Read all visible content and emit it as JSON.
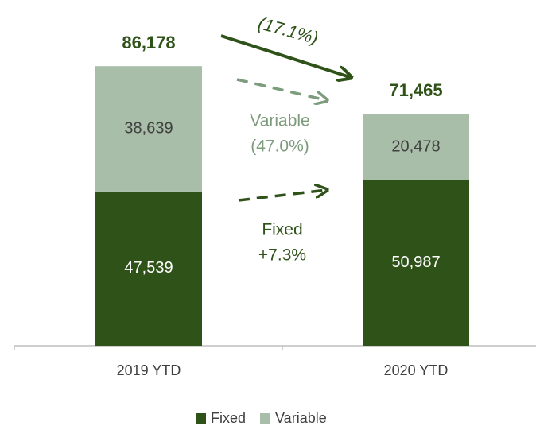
{
  "chart_data": {
    "type": "bar",
    "stacked": true,
    "categories": [
      "2019 YTD",
      "2020 YTD"
    ],
    "series": [
      {
        "name": "Fixed",
        "color": "#2f5219",
        "values": [
          47539,
          50987
        ],
        "value_labels": [
          "47,539",
          "50,987"
        ]
      },
      {
        "name": "Variable",
        "color": "#a8bea8",
        "values": [
          38639,
          20478
        ],
        "value_labels": [
          "38,639",
          "20,478"
        ]
      }
    ],
    "totals": [
      86178,
      71465
    ],
    "total_labels": [
      "86,178",
      "71,465"
    ],
    "annotations": [
      "(17.1%)",
      "Variable",
      "(47.0%)",
      "Fixed",
      "+7.3%"
    ],
    "ylim": [
      0,
      97000
    ],
    "legend": "bottom"
  }
}
